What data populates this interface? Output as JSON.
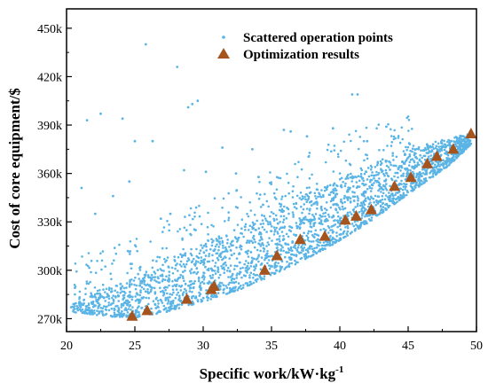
{
  "chart_data": {
    "type": "scatter",
    "xlabel": "Specific work/kW·kg",
    "xlabel_superscript": "-1",
    "ylabel": "Cost of core equipment/$",
    "xlim": [
      20,
      50
    ],
    "ylim": [
      262000,
      462000
    ],
    "x_ticks": [
      20,
      25,
      30,
      35,
      40,
      45,
      50
    ],
    "y_ticks": [
      270000,
      300000,
      330000,
      360000,
      390000,
      420000,
      450000
    ],
    "x_tick_labels": [
      "20",
      "25",
      "30",
      "35",
      "40",
      "45",
      "50"
    ],
    "y_tick_labels": [
      "270k",
      "300k",
      "330k",
      "360k",
      "390k",
      "420k",
      "450k"
    ],
    "grid": false,
    "legend_position": "top-right",
    "colors": {
      "scatter": "#5ab4e5",
      "optimization": "#a6541e",
      "axis": "#000000"
    },
    "series": [
      {
        "name": "Scattered operation points",
        "marker": "dot",
        "description_points": [
          [
            20.6,
            276000
          ],
          [
            21.1,
            351000
          ],
          [
            21.5,
            393000
          ],
          [
            22.1,
            335000
          ],
          [
            22.5,
            397000
          ],
          [
            23.4,
            346000
          ],
          [
            24.1,
            394000
          ],
          [
            24.6,
            355000
          ],
          [
            25.0,
            380000
          ],
          [
            25.4,
            302000
          ],
          [
            25.8,
            440000
          ],
          [
            26.3,
            380000
          ],
          [
            26.9,
            332000
          ],
          [
            27.6,
            335000
          ],
          [
            28.1,
            426000
          ],
          [
            28.6,
            362000
          ],
          [
            28.9,
            401000
          ],
          [
            29.2,
            403000
          ],
          [
            29.6,
            405000
          ],
          [
            30.2,
            361000
          ],
          [
            31.4,
            376000
          ],
          [
            32.4,
            360000
          ],
          [
            33.6,
            375000
          ],
          [
            35.9,
            387000
          ],
          [
            36.4,
            386000
          ],
          [
            37.6,
            383000
          ],
          [
            39.5,
            388000
          ],
          [
            40.9,
            409000
          ],
          [
            41.3,
            409000
          ],
          [
            42.0,
            380000
          ],
          [
            43.4,
            389000
          ]
        ]
      },
      {
        "name": "Optimization results",
        "marker": "triangle",
        "x": [
          24.8,
          25.9,
          28.8,
          30.6,
          30.8,
          34.5,
          35.4,
          37.1,
          38.9,
          40.4,
          41.2,
          42.3,
          44.0,
          45.2,
          46.4,
          47.1,
          48.3,
          49.6
        ],
        "y": [
          271500,
          275000,
          282000,
          288000,
          290000,
          300000,
          309000,
          319000,
          321000,
          331000,
          333500,
          337500,
          352000,
          357500,
          366000,
          370500,
          375000,
          384500
        ]
      }
    ],
    "cloud": {
      "count": 2600,
      "x_range": [
        20.3,
        49.6
      ],
      "lower_edge": [
        [
          20.5,
          274000
        ],
        [
          23.0,
          271500
        ],
        [
          24.8,
          270500
        ],
        [
          27.0,
          273500
        ],
        [
          30.0,
          280500
        ],
        [
          33.0,
          289000
        ],
        [
          36.0,
          300500
        ],
        [
          39.0,
          313500
        ],
        [
          42.0,
          329000
        ],
        [
          45.0,
          347000
        ],
        [
          48.0,
          365000
        ],
        [
          49.6,
          378000
        ]
      ],
      "upper_edge": [
        [
          20.5,
          283000
        ],
        [
          23.0,
          289000
        ],
        [
          25.0,
          296000
        ],
        [
          27.0,
          305000
        ],
        [
          30.0,
          317000
        ],
        [
          33.0,
          329000
        ],
        [
          36.0,
          341000
        ],
        [
          39.0,
          353000
        ],
        [
          42.0,
          365000
        ],
        [
          45.0,
          375000
        ],
        [
          48.0,
          382000
        ],
        [
          49.6,
          385000
        ]
      ]
    }
  }
}
